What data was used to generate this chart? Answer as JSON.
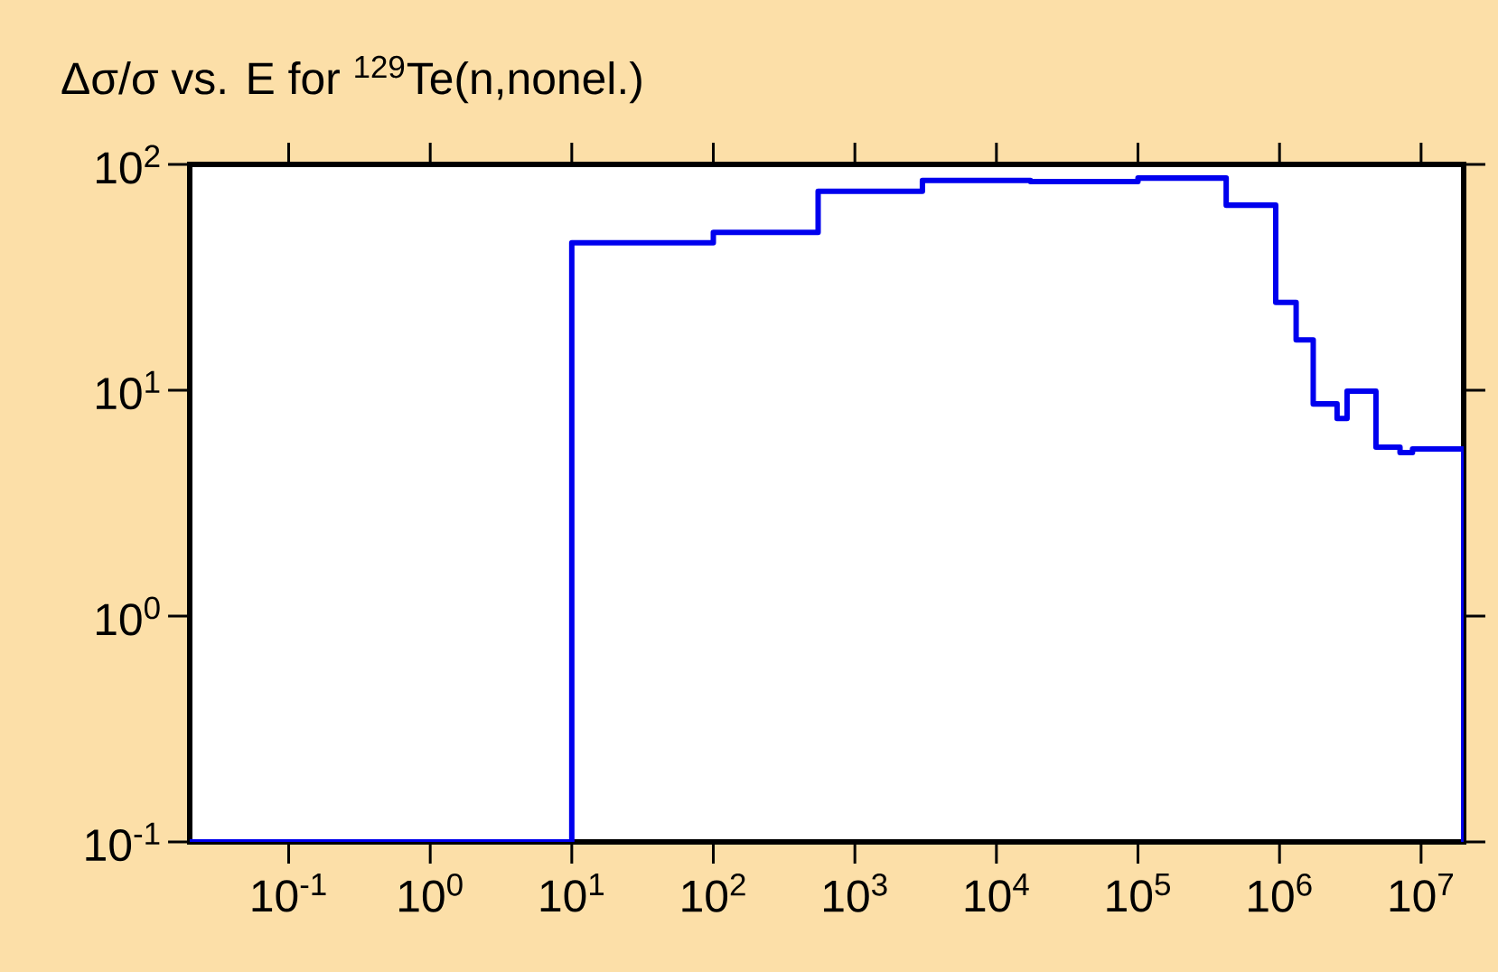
{
  "chart_data": {
    "type": "step",
    "title": "Δσ/σ vs. E for $^{129}$Te(n,nonel.)",
    "log": "xy",
    "xlim": [
      0.02,
      20000000
    ],
    "ylim": [
      0.1,
      100
    ],
    "xticks": [
      {
        "value": 0.1,
        "label": "10$^{-1}$"
      },
      {
        "value": 1,
        "label": "10$^{0}$"
      },
      {
        "value": 10,
        "label": "10$^{1}$"
      },
      {
        "value": 100,
        "label": "10$^{2}$"
      },
      {
        "value": 1000,
        "label": "10$^{3}$"
      },
      {
        "value": 10000,
        "label": "10$^{4}$"
      },
      {
        "value": 100000,
        "label": "10$^{5}$"
      },
      {
        "value": 1000000,
        "label": "10$^{6}$"
      },
      {
        "value": 10000000,
        "label": "10$^{7}$"
      }
    ],
    "yticks": [
      {
        "value": 0.1,
        "label": "10$^{-1}$"
      },
      {
        "value": 1,
        "label": "10$^{0}$"
      },
      {
        "value": 10,
        "label": "10$^{1}$"
      },
      {
        "value": 100,
        "label": "10$^{2}$"
      }
    ],
    "series": [
      {
        "color": "#0000ee",
        "x": [
          0.02,
          10,
          100,
          550,
          3000,
          17400,
          100000,
          420000,
          940000,
          1310000,
          1730000,
          2550000,
          3000000,
          4800000,
          7100000,
          8700000,
          20000000
        ],
        "values": [
          0.1,
          45,
          50,
          76,
          85,
          84,
          87,
          66,
          24.5,
          16.7,
          8.7,
          7.5,
          9.9,
          5.6,
          5.3,
          5.5,
          0.1
        ]
      }
    ]
  }
}
